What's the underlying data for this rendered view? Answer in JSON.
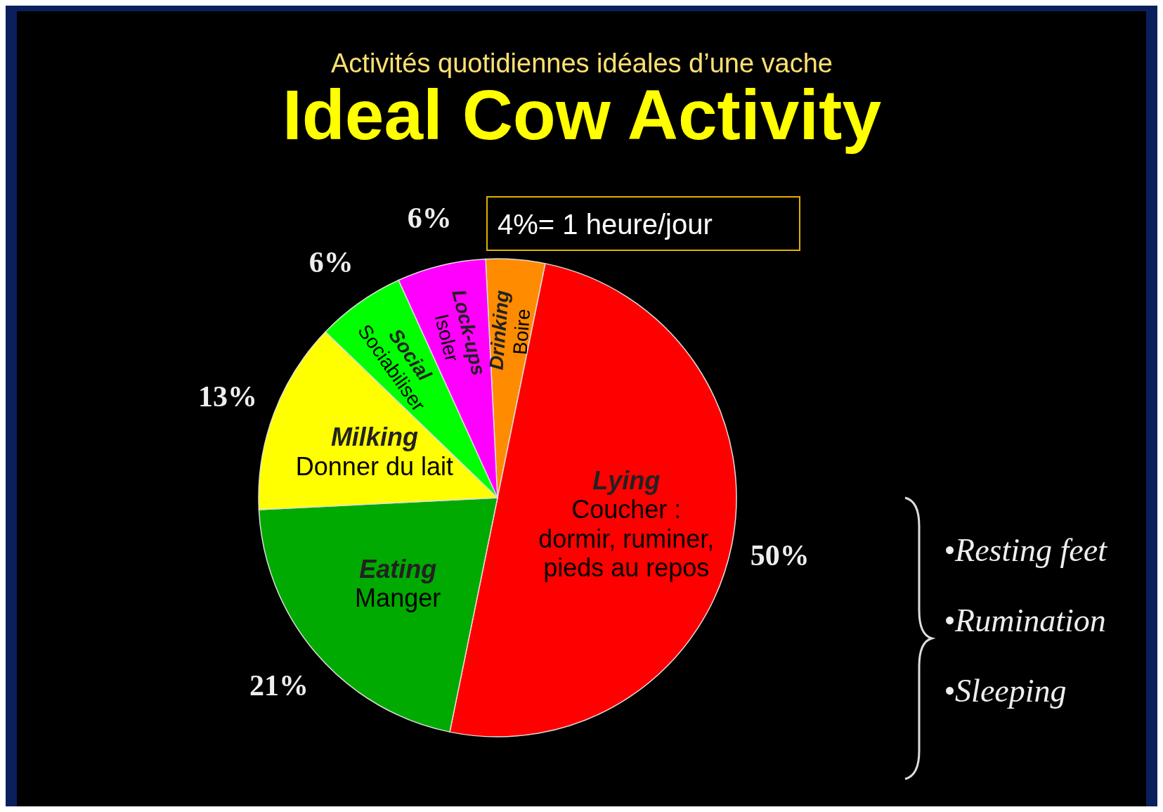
{
  "chart_data": {
    "type": "pie",
    "subtitle": "Activités quotidiennes idéales d’une vache",
    "title": "Ideal Cow Activity",
    "categories": [
      "Drinking\nBoire",
      "Lying\nCoucher :\ndormir, ruminer,\npieds au repos",
      "Eating\nManger",
      "Milking\nDonner du lait",
      "Social\nSociabiliser",
      "Lock-ups\nIsoler"
    ],
    "values": [
      4,
      50,
      21,
      13,
      6,
      6
    ],
    "colors": [
      "#ff8c00",
      "#ff0000",
      "#00aa00",
      "#ffff00",
      "#00ff00",
      "#ff00ff"
    ],
    "value_labels": [
      null,
      "50%",
      "21%",
      "13%",
      "6%",
      "6%"
    ],
    "annotations": [
      "4%= 1 heure/jour",
      "•Resting feet",
      "•Rumination",
      "•Sleeping"
    ]
  }
}
